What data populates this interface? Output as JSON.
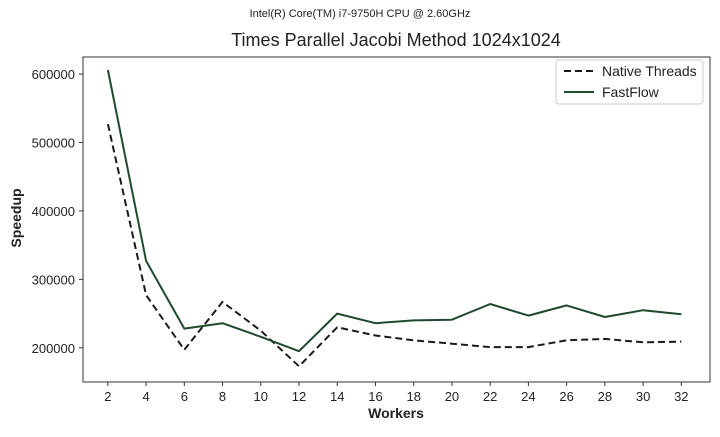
{
  "figure": {
    "suptitle": "Intel(R) Core(TM) i7-9750H CPU @ 2.60GHz"
  },
  "chart_data": {
    "type": "line",
    "title": "Times Parallel Jacobi Method 1024x1024",
    "xlabel": "Workers",
    "ylabel": "Speedup",
    "x": [
      2,
      4,
      6,
      8,
      10,
      12,
      14,
      16,
      18,
      20,
      22,
      24,
      26,
      28,
      30,
      32
    ],
    "y_ticks": [
      200000,
      300000,
      400000,
      500000,
      600000
    ],
    "ylim": [
      150000,
      625000
    ],
    "xlim": [
      0.7,
      33.5
    ],
    "grid": false,
    "legend_position": "top-right",
    "series": [
      {
        "name": "Native Threads",
        "style": "dashed",
        "color": "#1a1a1a",
        "values": [
          527000,
          277000,
          197000,
          267000,
          225000,
          173000,
          230000,
          218000,
          211000,
          206000,
          201000,
          201000,
          211000,
          213000,
          208000,
          209000
        ]
      },
      {
        "name": "FastFlow",
        "style": "solid",
        "color": "#1f4a2e",
        "values": [
          606000,
          327000,
          228000,
          236000,
          216000,
          195000,
          250000,
          236000,
          240000,
          241000,
          264000,
          247000,
          262000,
          245000,
          255000,
          249000
        ]
      }
    ]
  }
}
